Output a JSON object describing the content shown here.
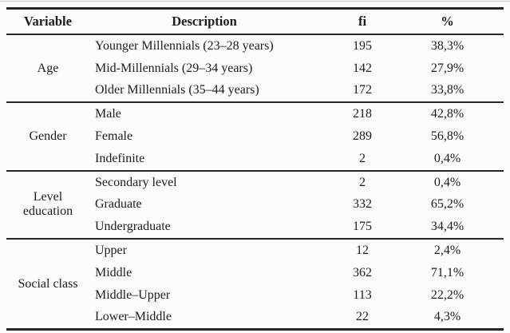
{
  "table": {
    "headers": {
      "variable": "Variable",
      "description": "Description",
      "fi": "fi",
      "pct": "%"
    },
    "groups": [
      {
        "variable": "Age",
        "rows": [
          {
            "description": "Younger Millennials (23–28 years)",
            "fi": "195",
            "pct": "38,3%"
          },
          {
            "description": "Mid-Millennials (29–34 years)",
            "fi": "142",
            "pct": "27,9%"
          },
          {
            "description": "Older Millennials (35–44 years)",
            "fi": "172",
            "pct": "33,8%"
          }
        ]
      },
      {
        "variable": "Gender",
        "rows": [
          {
            "description": "Male",
            "fi": "218",
            "pct": "42,8%"
          },
          {
            "description": "Female",
            "fi": "289",
            "pct": "56,8%"
          },
          {
            "description": "Indefinite",
            "fi": "2",
            "pct": "0,4%"
          }
        ]
      },
      {
        "variable": "Level education",
        "rows": [
          {
            "description": "Secondary level",
            "fi": "2",
            "pct": "0,4%"
          },
          {
            "description": "Graduate",
            "fi": "332",
            "pct": "65,2%"
          },
          {
            "description": "Undergraduate",
            "fi": "175",
            "pct": "34,4%"
          }
        ]
      },
      {
        "variable": "Social class",
        "rows": [
          {
            "description": "Upper",
            "fi": "12",
            "pct": "2,4%"
          },
          {
            "description": "Middle",
            "fi": "362",
            "pct": "71,1%"
          },
          {
            "description": "Middle–Upper",
            "fi": "113",
            "pct": "22,2%"
          },
          {
            "description": "Lower–Middle",
            "fi": "22",
            "pct": "4,3%"
          }
        ]
      }
    ],
    "colors": {
      "rule": "#262626",
      "text": "#1c1c1c",
      "background": "#fcfcfc"
    }
  }
}
